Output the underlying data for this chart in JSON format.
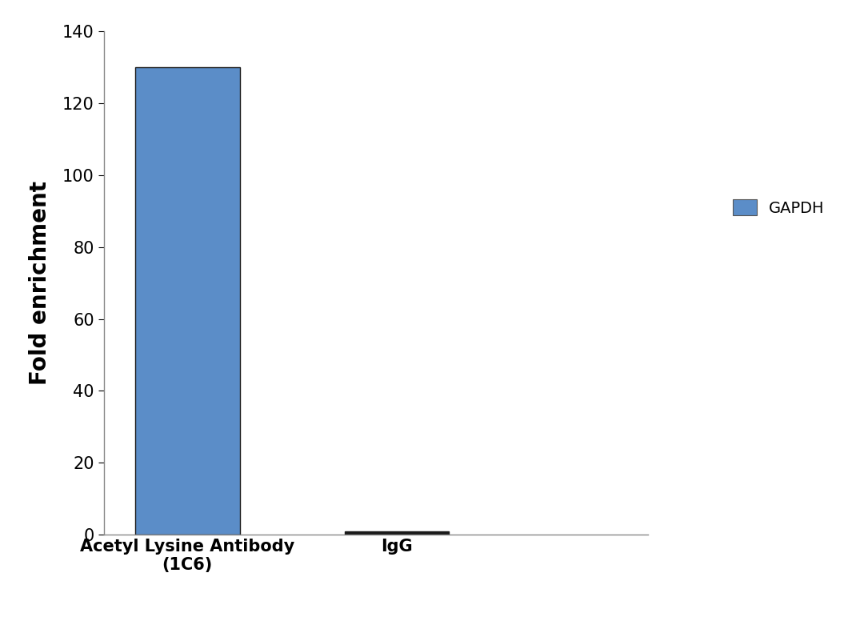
{
  "categories": [
    "Acetyl Lysine Antibody\n(1C6)",
    "IgG"
  ],
  "values": [
    130,
    1
  ],
  "bar_color": "#5B8DC8",
  "bar_edgecolor": "#1a1a1a",
  "bar_linewidth": 1.0,
  "igG_bar_color": "#1a1a1a",
  "igG_bar_edgecolor": "#1a1a1a",
  "ylabel": "Fold enrichment",
  "ylim": [
    0,
    140
  ],
  "yticks": [
    0,
    20,
    40,
    60,
    80,
    100,
    120,
    140
  ],
  "legend_label": "GAPDH",
  "legend_color": "#5B8DC8",
  "bar_width": 0.5,
  "background_color": "#ffffff",
  "ylabel_fontsize": 20,
  "tick_fontsize": 15,
  "xlabel_fontsize": 15,
  "legend_fontsize": 14
}
